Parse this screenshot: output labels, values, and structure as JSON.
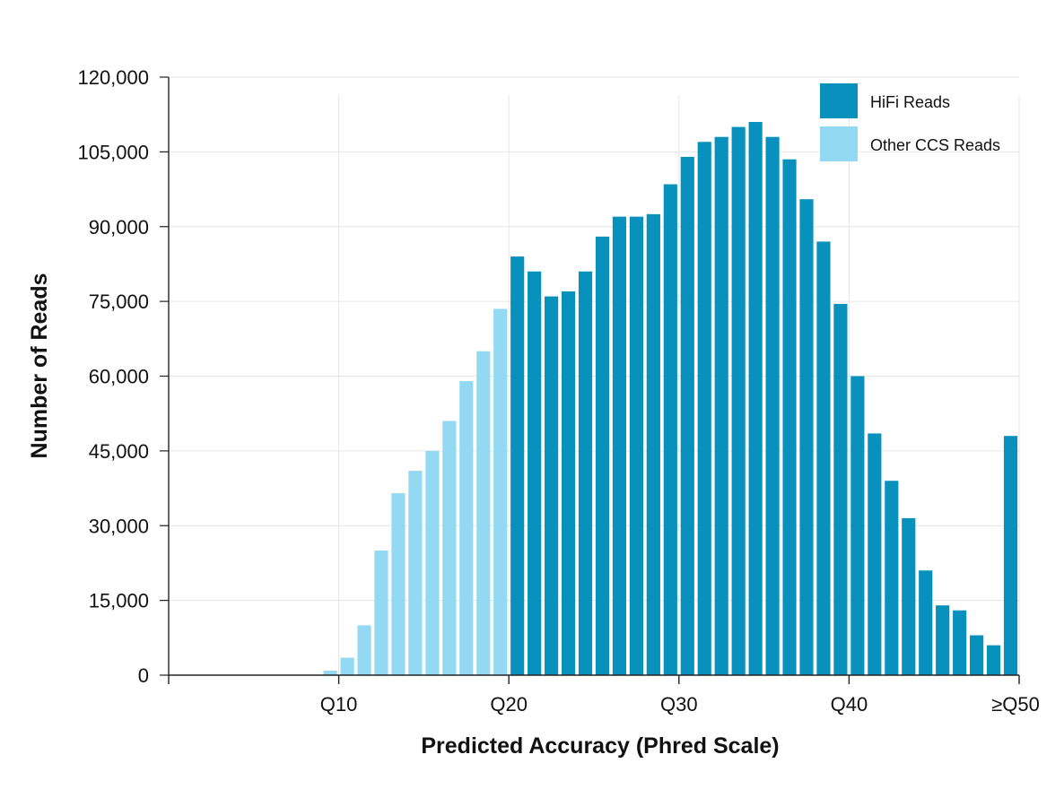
{
  "chart_data": {
    "type": "bar",
    "xlabel": "Predicted Accuracy (Phred Scale)",
    "ylabel": "Number of Reads",
    "ylim": [
      0,
      120000
    ],
    "xlim": [
      0,
      50
    ],
    "yticks": [
      0,
      15000,
      30000,
      45000,
      60000,
      75000,
      90000,
      105000,
      120000
    ],
    "ytick_labels": [
      "0",
      "15,000",
      "30,000",
      "45,000",
      "60,000",
      "75,000",
      "90,000",
      "105,000",
      "120,000"
    ],
    "xticks": [
      {
        "value": 10,
        "label": "Q10"
      },
      {
        "value": 20,
        "label": "Q20"
      },
      {
        "value": 30,
        "label": "Q30"
      },
      {
        "value": 40,
        "label": "Q40"
      },
      {
        "value": 50,
        "label": "≥Q50"
      }
    ],
    "grid": true,
    "legend_position": "top-right",
    "colors": {
      "hifi": "#0891bd",
      "other": "#93d9f4",
      "grid": "#e6e6e6",
      "axis": "#222222"
    },
    "series": [
      {
        "name": "HiFi Reads",
        "x": [
          20,
          21,
          22,
          23,
          24,
          25,
          26,
          27,
          28,
          29,
          30,
          31,
          32,
          33,
          34,
          35,
          36,
          37,
          38,
          39,
          40,
          41,
          42,
          43,
          44,
          45,
          46,
          47,
          48,
          49
        ],
        "values": [
          84000,
          81000,
          76000,
          77000,
          81000,
          88000,
          92000,
          92000,
          92500,
          98500,
          104000,
          107000,
          108000,
          110000,
          111000,
          108000,
          103500,
          95500,
          87000,
          74500,
          60000,
          48500,
          39000,
          31500,
          21000,
          14000,
          13000,
          8000,
          6000,
          48000
        ]
      },
      {
        "name": "Other CCS Reads",
        "x": [
          9,
          10,
          11,
          12,
          13,
          14,
          15,
          16,
          17,
          18,
          19
        ],
        "values": [
          900,
          3500,
          10000,
          25000,
          36500,
          41000,
          45000,
          51000,
          59000,
          65000,
          73500
        ]
      }
    ]
  }
}
